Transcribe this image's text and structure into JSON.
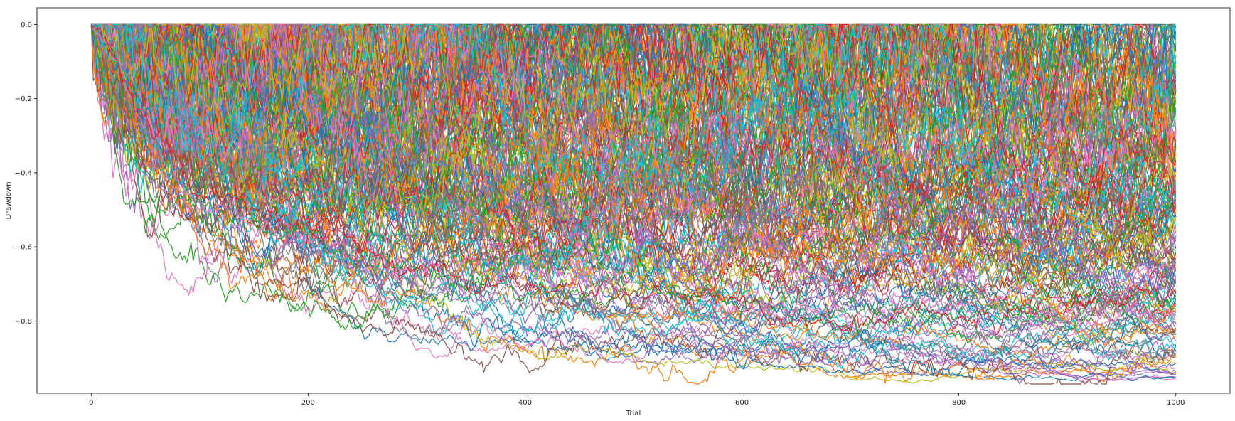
{
  "chart_data": {
    "type": "line",
    "title": "",
    "xlabel": "Trial",
    "ylabel": "Drawdown",
    "xlim": [
      -50,
      1050
    ],
    "ylim": [
      -0.995,
      0.045
    ],
    "xticks": [
      0,
      200,
      400,
      600,
      800,
      1000
    ],
    "xtick_labels": [
      "0",
      "200",
      "400",
      "600",
      "800",
      "1000"
    ],
    "yticks": [
      0.0,
      -0.2,
      -0.4,
      -0.6,
      -0.8
    ],
    "ytick_labels": [
      "0.0",
      "−0.2",
      "−0.4",
      "−0.6",
      "−0.8"
    ],
    "grid": false,
    "legend": "none",
    "trials": 1000,
    "series_count": 200,
    "colors": [
      "#1f77b4",
      "#ff7f0e",
      "#2ca02c",
      "#d62728",
      "#9467bd",
      "#8c564b",
      "#e377c2",
      "#7f7f7f",
      "#bcbd22",
      "#17becf"
    ],
    "lowest_paths": [
      {
        "color": "#ff7f0e",
        "points": [
          [
            0,
            0
          ],
          [
            100,
            -0.58
          ],
          [
            200,
            -0.67
          ],
          [
            300,
            -0.76
          ],
          [
            400,
            -0.85
          ],
          [
            450,
            -0.92
          ],
          [
            500,
            -0.9
          ],
          [
            560,
            -0.93
          ],
          [
            600,
            -0.9
          ],
          [
            700,
            -0.91
          ],
          [
            800,
            -0.93
          ],
          [
            900,
            -0.94
          ],
          [
            1000,
            -0.915
          ]
        ]
      },
      {
        "color": "#8c564b",
        "points": [
          [
            0,
            0
          ],
          [
            50,
            -0.4
          ],
          [
            130,
            -0.63
          ],
          [
            150,
            -0.7
          ],
          [
            200,
            -0.72
          ],
          [
            230,
            -0.8
          ],
          [
            300,
            -0.8
          ],
          [
            350,
            -0.88
          ],
          [
            400,
            -0.87
          ],
          [
            500,
            -0.85
          ],
          [
            600,
            -0.87
          ],
          [
            700,
            -0.89
          ],
          [
            800,
            -0.93
          ],
          [
            900,
            -0.95
          ],
          [
            1000,
            -0.88
          ]
        ]
      },
      {
        "color": "#1f77b4",
        "points": [
          [
            0,
            0
          ],
          [
            100,
            -0.45
          ],
          [
            200,
            -0.6
          ],
          [
            300,
            -0.73
          ],
          [
            350,
            -0.82
          ],
          [
            400,
            -0.84
          ],
          [
            500,
            -0.87
          ],
          [
            600,
            -0.88
          ],
          [
            700,
            -0.88
          ],
          [
            800,
            -0.9
          ],
          [
            900,
            -0.9
          ],
          [
            1000,
            -0.87
          ]
        ]
      },
      {
        "color": "#9467bd",
        "points": [
          [
            0,
            0
          ],
          [
            60,
            -0.46
          ],
          [
            150,
            -0.58
          ],
          [
            250,
            -0.66
          ],
          [
            300,
            -0.78
          ],
          [
            350,
            -0.8
          ],
          [
            450,
            -0.83
          ],
          [
            550,
            -0.86
          ],
          [
            650,
            -0.86
          ],
          [
            750,
            -0.9
          ],
          [
            850,
            -0.92
          ],
          [
            1000,
            -0.89
          ]
        ]
      },
      {
        "color": "#17becf",
        "points": [
          [
            0,
            0
          ],
          [
            100,
            -0.5
          ],
          [
            200,
            -0.62
          ],
          [
            300,
            -0.7
          ],
          [
            400,
            -0.78
          ],
          [
            500,
            -0.82
          ],
          [
            600,
            -0.86
          ],
          [
            700,
            -0.88
          ],
          [
            800,
            -0.88
          ],
          [
            900,
            -0.85
          ],
          [
            1000,
            -0.86
          ]
        ]
      },
      {
        "color": "#2ca02c",
        "points": [
          [
            0,
            0
          ],
          [
            30,
            -0.47
          ],
          [
            80,
            -0.5
          ],
          [
            200,
            -0.55
          ],
          [
            300,
            -0.68
          ],
          [
            400,
            -0.74
          ],
          [
            500,
            -0.72
          ],
          [
            600,
            -0.75
          ],
          [
            700,
            -0.8
          ],
          [
            800,
            -0.78
          ],
          [
            1000,
            -0.76
          ]
        ]
      },
      {
        "color": "#7f7f7f",
        "points": [
          [
            0,
            0
          ],
          [
            100,
            -0.5
          ],
          [
            150,
            -0.64
          ],
          [
            200,
            -0.62
          ],
          [
            300,
            -0.7
          ],
          [
            400,
            -0.74
          ],
          [
            500,
            -0.78
          ],
          [
            600,
            -0.8
          ],
          [
            700,
            -0.83
          ],
          [
            800,
            -0.85
          ],
          [
            900,
            -0.88
          ],
          [
            1000,
            -0.84
          ]
        ]
      },
      {
        "color": "#e377c2",
        "points": [
          [
            0,
            0
          ],
          [
            100,
            -0.48
          ],
          [
            200,
            -0.58
          ],
          [
            300,
            -0.62
          ],
          [
            400,
            -0.68
          ],
          [
            500,
            -0.74
          ],
          [
            600,
            -0.78
          ],
          [
            700,
            -0.8
          ],
          [
            800,
            -0.77
          ],
          [
            900,
            -0.74
          ],
          [
            1000,
            -0.78
          ]
        ]
      },
      {
        "color": "#d62728",
        "points": [
          [
            0,
            0
          ],
          [
            100,
            -0.46
          ],
          [
            200,
            -0.55
          ],
          [
            300,
            -0.66
          ],
          [
            400,
            -0.72
          ],
          [
            500,
            -0.7
          ],
          [
            600,
            -0.76
          ],
          [
            700,
            -0.82
          ],
          [
            800,
            -0.79
          ],
          [
            900,
            -0.75
          ],
          [
            1000,
            -0.73
          ]
        ]
      }
    ]
  }
}
